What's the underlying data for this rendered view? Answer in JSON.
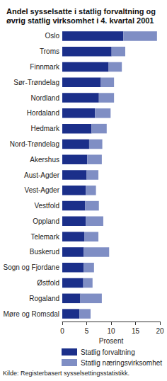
{
  "chart_data": {
    "type": "bar",
    "orientation": "horizontal",
    "stacked": true,
    "title": "Andel sysselsatte i statlig forvaltning og øvrig statlig virksomhet i 4. kvartal 2001",
    "xlabel": "Prosent",
    "source": "Kilde: Registerbasert sysselsettingsstatistikk.",
    "categories": [
      "Oslo",
      "Troms",
      "Finnmark",
      "Sør-Trøndelag",
      "Nordland",
      "Hordaland",
      "Hedmark",
      "Nord-Trøndelag",
      "Akershus",
      "Aust-Agder",
      "Vest-Agder",
      "Vestfold",
      "Oppland",
      "Telemark",
      "Buskerud",
      "Sogn og Fjordane",
      "Østfold",
      "Rogaland",
      "Møre og Romsdal"
    ],
    "series": [
      {
        "name": "Statlig forvaltning",
        "color": "#1b2f8a",
        "values": [
          12.5,
          10.1,
          9.5,
          7.9,
          7.5,
          6.7,
          6.0,
          5.5,
          5.1,
          5.0,
          4.8,
          4.7,
          4.8,
          4.5,
          4.4,
          4.4,
          4.3,
          3.7,
          3.5
        ]
      },
      {
        "name": "Statlig næringsvirksomhet",
        "color": "#7f8ec4",
        "values": [
          6.9,
          2.8,
          2.7,
          2.7,
          3.1,
          3.2,
          3.1,
          2.7,
          3.0,
          2.4,
          2.1,
          2.8,
          3.6,
          2.9,
          5.2,
          2.1,
          1.9,
          4.4,
          2.3
        ]
      }
    ],
    "xlim": [
      0,
      20
    ],
    "xticks": [
      0,
      5,
      10,
      15,
      20
    ],
    "grid": false,
    "legend": "bottom"
  }
}
